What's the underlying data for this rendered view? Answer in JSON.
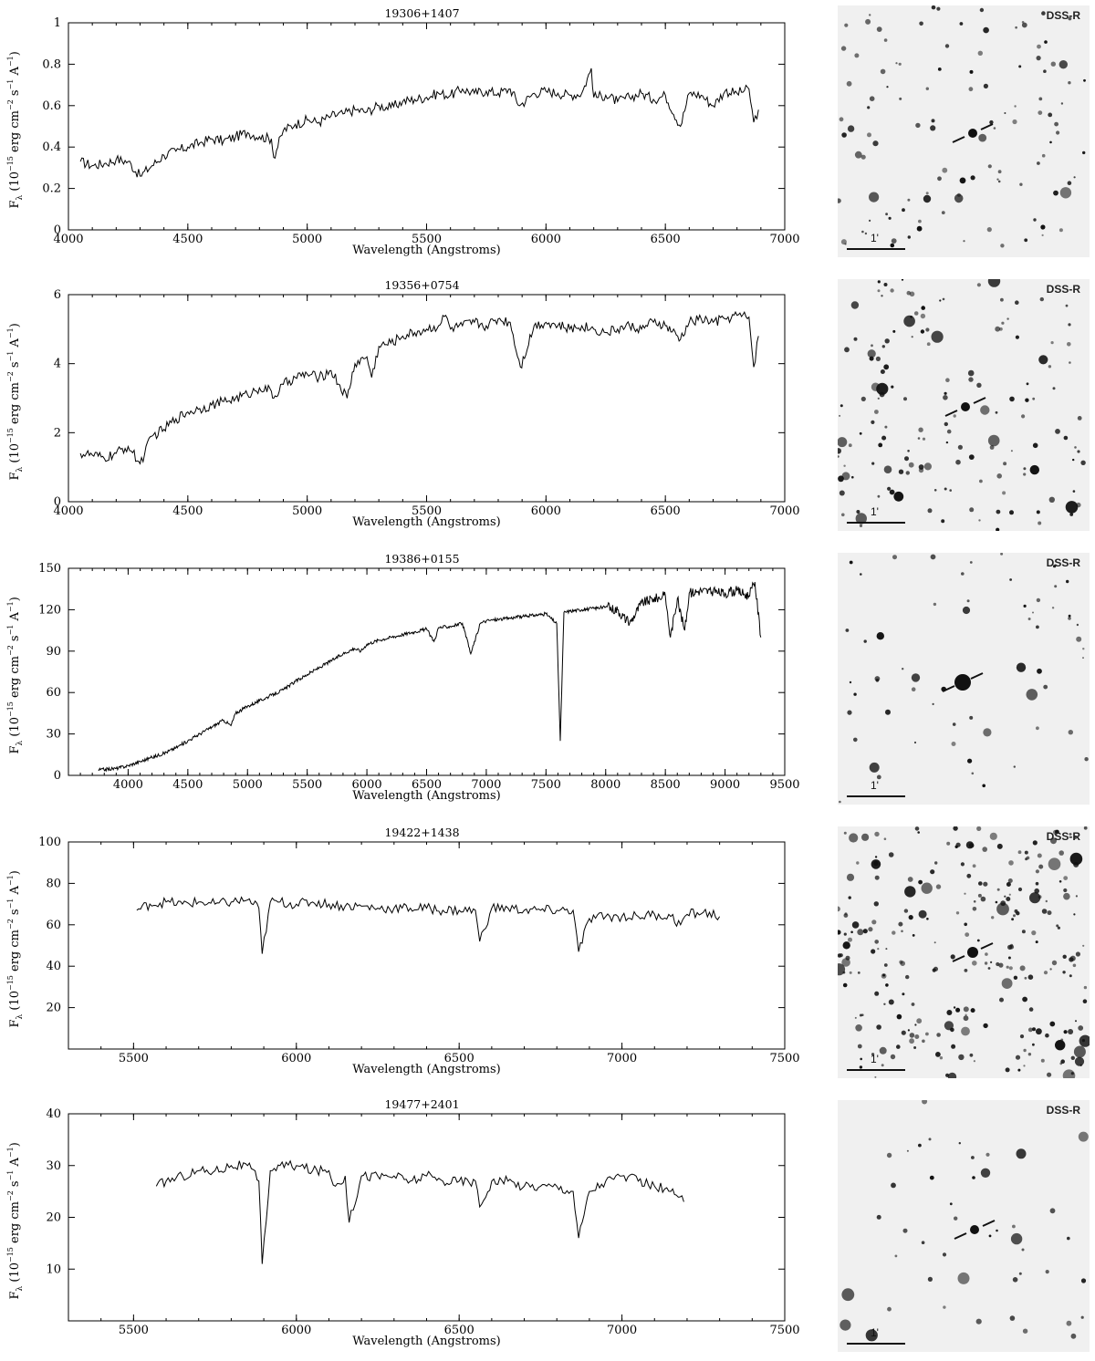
{
  "chart_data": [
    {
      "type": "line",
      "title": "19306+1407",
      "xlabel": "Wavelength (Angstroms)",
      "ylabel": "F_λ (10^-15 erg cm^-2 s^-1 A^-1)",
      "xlim": [
        4000,
        7000
      ],
      "ylim": [
        0,
        1
      ],
      "xticks": [
        "4000",
        "4500",
        "5000",
        "5500",
        "6000",
        "6500",
        "7000"
      ],
      "yticks": [
        "0",
        "0.2",
        "0.4",
        "0.6",
        "0.8",
        "1"
      ],
      "x": [
        4050,
        4100,
        4150,
        4200,
        4250,
        4300,
        4350,
        4400,
        4450,
        4500,
        4550,
        4600,
        4650,
        4700,
        4750,
        4800,
        4850,
        4860,
        4900,
        4950,
        5000,
        5050,
        5100,
        5150,
        5200,
        5250,
        5300,
        5350,
        5400,
        5450,
        5500,
        5550,
        5600,
        5650,
        5700,
        5750,
        5800,
        5850,
        5890,
        5950,
        6000,
        6050,
        6100,
        6150,
        6190,
        6200,
        6250,
        6300,
        6350,
        6400,
        6450,
        6500,
        6563,
        6600,
        6650,
        6700,
        6750,
        6800,
        6850,
        6870,
        6890
      ],
      "y": [
        0.33,
        0.31,
        0.32,
        0.34,
        0.33,
        0.26,
        0.31,
        0.36,
        0.38,
        0.4,
        0.42,
        0.44,
        0.43,
        0.45,
        0.47,
        0.45,
        0.44,
        0.35,
        0.48,
        0.51,
        0.53,
        0.52,
        0.55,
        0.56,
        0.58,
        0.57,
        0.6,
        0.59,
        0.62,
        0.63,
        0.64,
        0.66,
        0.65,
        0.68,
        0.66,
        0.67,
        0.66,
        0.68,
        0.6,
        0.66,
        0.67,
        0.66,
        0.65,
        0.66,
        0.78,
        0.64,
        0.65,
        0.62,
        0.64,
        0.66,
        0.63,
        0.65,
        0.5,
        0.66,
        0.65,
        0.6,
        0.67,
        0.66,
        0.68,
        0.52,
        0.58
      ]
    },
    {
      "type": "line",
      "title": "19356+0754",
      "xlabel": "Wavelength (Angstroms)",
      "ylabel": "F_λ (10^-15 erg cm^-2 s^-1 A^-1)",
      "xlim": [
        4000,
        7000
      ],
      "ylim": [
        0,
        6
      ],
      "xticks": [
        "4000",
        "4500",
        "5000",
        "5500",
        "6000",
        "6500",
        "7000"
      ],
      "yticks": [
        "0",
        "2",
        "4",
        "6"
      ],
      "x": [
        4050,
        4100,
        4150,
        4200,
        4250,
        4300,
        4350,
        4400,
        4450,
        4500,
        4550,
        4600,
        4650,
        4700,
        4750,
        4800,
        4850,
        4860,
        4900,
        4950,
        5000,
        5050,
        5100,
        5167,
        5200,
        5250,
        5270,
        5300,
        5350,
        5400,
        5450,
        5500,
        5550,
        5580,
        5600,
        5650,
        5700,
        5750,
        5800,
        5850,
        5893,
        5950,
        6000,
        6050,
        6100,
        6150,
        6200,
        6250,
        6300,
        6350,
        6400,
        6450,
        6500,
        6563,
        6600,
        6650,
        6700,
        6750,
        6800,
        6850,
        6870,
        6890
      ],
      "y": [
        1.4,
        1.35,
        1.25,
        1.4,
        1.6,
        1.1,
        1.9,
        2.1,
        2.4,
        2.6,
        2.7,
        2.8,
        2.9,
        3.0,
        3.1,
        3.3,
        3.2,
        3.0,
        3.4,
        3.6,
        3.7,
        3.6,
        3.8,
        3.0,
        4.0,
        4.2,
        3.6,
        4.5,
        4.6,
        4.8,
        4.9,
        5.0,
        5.1,
        5.4,
        5.0,
        5.1,
        5.2,
        5.1,
        5.3,
        5.2,
        3.9,
        5.1,
        5.2,
        5.1,
        5.0,
        5.1,
        5.0,
        4.9,
        5.0,
        5.1,
        5.0,
        5.2,
        5.1,
        4.7,
        5.2,
        5.3,
        5.2,
        5.3,
        5.4,
        5.35,
        3.9,
        4.8
      ]
    },
    {
      "type": "line",
      "title": "19386+0155",
      "xlabel": "Wavelength (Angstroms)",
      "ylabel": "F_λ (10^-15 erg cm^-2 s^-1 A^-1)",
      "xlim": [
        3500,
        9500
      ],
      "ylim": [
        0,
        150
      ],
      "xticks": [
        "4000",
        "4500",
        "5000",
        "5500",
        "6000",
        "6500",
        "7000",
        "7500",
        "8000",
        "8500",
        "9000",
        "9500"
      ],
      "yticks": [
        "0",
        "30",
        "60",
        "90",
        "120",
        "150"
      ],
      "x": [
        3750,
        3900,
        4000,
        4100,
        4200,
        4300,
        4400,
        4500,
        4600,
        4700,
        4800,
        4861,
        4900,
        5000,
        5100,
        5200,
        5300,
        5400,
        5500,
        5600,
        5700,
        5800,
        5893,
        5950,
        6000,
        6100,
        6200,
        6300,
        6400,
        6500,
        6563,
        6600,
        6700,
        6800,
        6870,
        6950,
        7000,
        7100,
        7200,
        7300,
        7400,
        7500,
        7590,
        7620,
        7650,
        7700,
        7800,
        7900,
        8000,
        8100,
        8200,
        8300,
        8400,
        8500,
        8542,
        8600,
        8662,
        8700,
        8800,
        8900,
        9000,
        9100,
        9200,
        9250,
        9300
      ],
      "y": [
        4,
        5,
        7,
        10,
        13,
        16,
        20,
        25,
        30,
        35,
        40,
        36,
        45,
        50,
        54,
        58,
        62,
        68,
        73,
        78,
        83,
        88,
        92,
        90,
        95,
        98,
        100,
        102,
        104,
        106,
        97,
        107,
        108,
        110,
        88,
        110,
        112,
        113,
        114,
        115,
        116,
        117,
        110,
        25,
        118,
        119,
        120,
        121,
        122,
        120,
        110,
        125,
        128,
        130,
        100,
        128,
        105,
        132,
        134,
        133,
        132,
        134,
        130,
        140,
        100
      ]
    },
    {
      "type": "line",
      "title": "19422+1438",
      "xlabel": "Wavelength (Angstroms)",
      "ylabel": "F_λ (10^-15 erg cm^-2 s^-1 A^-1)",
      "xlim": [
        5300,
        7500
      ],
      "ylim": [
        0,
        100
      ],
      "xticks": [
        "5500",
        "6000",
        "6500",
        "7000",
        "7500"
      ],
      "yticks": [
        "20",
        "40",
        "60",
        "80",
        "100"
      ],
      "x": [
        5510,
        5550,
        5600,
        5650,
        5700,
        5750,
        5800,
        5850,
        5885,
        5895,
        5920,
        5950,
        6000,
        6050,
        6100,
        6150,
        6200,
        6250,
        6300,
        6350,
        6400,
        6450,
        6500,
        6550,
        6563,
        6600,
        6650,
        6700,
        6750,
        6800,
        6850,
        6867,
        6900,
        6950,
        7000,
        7050,
        7100,
        7150,
        7180,
        7200,
        7250,
        7300
      ],
      "y": [
        67,
        70,
        71,
        70,
        71,
        70,
        71,
        72,
        68,
        46,
        71,
        71,
        70,
        71,
        70,
        69,
        69,
        68,
        68,
        68,
        68,
        67,
        67,
        67,
        52,
        68,
        68,
        67,
        67,
        67,
        67,
        47,
        63,
        64,
        64,
        64,
        65,
        64,
        60,
        65,
        66,
        64
      ]
    },
    {
      "type": "line",
      "title": "19477+2401",
      "xlabel": "Wavelength (Angstroms)",
      "ylabel": "F_λ (10^-15 erg cm^-2 s^-1 A^-1)",
      "xlim": [
        5300,
        7500
      ],
      "ylim": [
        0,
        40
      ],
      "xticks": [
        "5500",
        "6000",
        "6500",
        "7000",
        "7500"
      ],
      "yticks": [
        "10",
        "20",
        "30",
        "40"
      ],
      "x": [
        5570,
        5600,
        5650,
        5700,
        5750,
        5800,
        5850,
        5885,
        5895,
        5920,
        5950,
        6000,
        6050,
        6100,
        6120,
        6150,
        6162,
        6200,
        6250,
        6300,
        6350,
        6400,
        6450,
        6500,
        6550,
        6563,
        6600,
        6650,
        6700,
        6750,
        6800,
        6850,
        6867,
        6900,
        6950,
        7000,
        7050,
        7100,
        7150,
        7190
      ],
      "y": [
        26,
        27,
        28,
        29,
        29,
        30,
        30,
        27,
        11,
        29,
        30,
        30,
        29,
        29,
        26,
        28,
        19,
        28,
        28,
        28,
        27,
        28,
        27,
        27,
        27,
        22,
        27,
        27,
        26,
        26,
        26,
        25,
        16,
        25,
        27,
        28,
        27,
        26,
        25,
        23
      ]
    }
  ],
  "images": [
    {
      "label": "DSS-R",
      "scale": "1'"
    },
    {
      "label": "DSS-R",
      "scale": "1'"
    },
    {
      "label": "DSS-R",
      "scale": "1'"
    },
    {
      "label": "DSS-R",
      "scale": "1'"
    },
    {
      "label": "DSS-R",
      "scale": "1'"
    }
  ],
  "colors": {
    "line": "#000000",
    "image_bg": "#f0f0f0",
    "star": "#111111"
  }
}
